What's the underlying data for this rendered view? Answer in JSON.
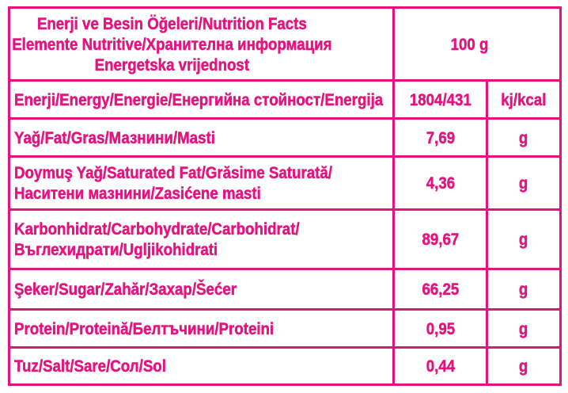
{
  "table": {
    "accent_color": "#e6137f",
    "header": {
      "title": "Enerji ve Besin Öğeleri/Nutrition Facts\nElemente Nutritive/Хранителна информация\nEnergetska vrijednost",
      "amount": "100 g"
    },
    "rows": [
      {
        "label": "Enerji/Energy/Energie/Енергийна стойност/Energija",
        "value": "1804/431",
        "unit": "kj/kcal"
      },
      {
        "label": "Yağ/Fat/Gras/Мазнини/Masti",
        "value": "7,69",
        "unit": "g"
      },
      {
        "label": "Doymuş Yağ/Saturated Fat/Grăsime Saturată/\nНаситени мазнини/Zasićene masti",
        "value": "4,36",
        "unit": "g"
      },
      {
        "label": "Karbonhidrat/Carbohydrate/Carbohidrat/\nВъглехидрати/Ugljikohidrati",
        "value": "89,67",
        "unit": "g"
      },
      {
        "label": "Şeker/Sugar/Zahăr/Захар/Šećer",
        "value": "66,25",
        "unit": "g"
      },
      {
        "label": "Protein/Proteină/Белтъчини/Proteini",
        "value": "0,95",
        "unit": "g"
      },
      {
        "label": "Tuz/Salt/Sare/Сол/Sol",
        "value": "0,44",
        "unit": "g"
      }
    ]
  }
}
